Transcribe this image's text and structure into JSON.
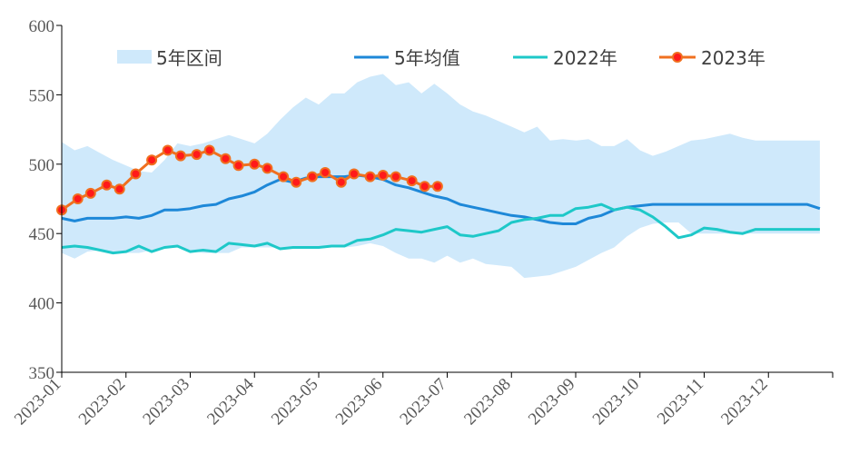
{
  "chart_data": {
    "type": "line",
    "title": "",
    "xlabel": "",
    "ylabel": "",
    "ylim": [
      350,
      600
    ],
    "yticks": [
      350,
      400,
      450,
      500,
      550,
      600
    ],
    "x_months": [
      "2023-01",
      "2023-02",
      "2023-03",
      "2023-04",
      "2023-05",
      "2023-06",
      "2023-07",
      "2023-08",
      "2023-09",
      "2023-10",
      "2023-11",
      "2023-12"
    ],
    "grid": false,
    "legend_position": "top",
    "band": {
      "name": "5年区间",
      "color": "#cfe9fb",
      "x": [
        0,
        0.2,
        0.4,
        0.6,
        0.8,
        1,
        1.2,
        1.4,
        1.6,
        1.8,
        2,
        2.2,
        2.4,
        2.6,
        2.8,
        3,
        3.2,
        3.4,
        3.6,
        3.8,
        4,
        4.2,
        4.4,
        4.6,
        4.8,
        5,
        5.2,
        5.4,
        5.6,
        5.8,
        6,
        6.2,
        6.4,
        6.6,
        6.8,
        7,
        7.2,
        7.4,
        7.6,
        7.8,
        8,
        8.2,
        8.4,
        8.6,
        8.8,
        9,
        9.2,
        9.4,
        9.6,
        9.8,
        10,
        10.2,
        10.4,
        10.6,
        10.8,
        11,
        11.2,
        11.4,
        11.6,
        11.8
      ],
      "upper": [
        516,
        510,
        513,
        508,
        503,
        499,
        495,
        494,
        503,
        515,
        513,
        515,
        518,
        521,
        518,
        515,
        522,
        532,
        541,
        548,
        543,
        551,
        551,
        559,
        563,
        565,
        557,
        559,
        551,
        558,
        551,
        543,
        538,
        535,
        531,
        527,
        523,
        527,
        517,
        518,
        517,
        518,
        513,
        513,
        518,
        510,
        506,
        509,
        513,
        517,
        518,
        520,
        522,
        519,
        517,
        517,
        517,
        517,
        517,
        517
      ],
      "lower": [
        436,
        432,
        437,
        438,
        437,
        436,
        436,
        438,
        440,
        440,
        438,
        436,
        436,
        436,
        440,
        440,
        440,
        440,
        439,
        440,
        440,
        440,
        440,
        441,
        443,
        441,
        436,
        432,
        432,
        429,
        434,
        429,
        432,
        428,
        427,
        426,
        418,
        419,
        420,
        423,
        426,
        431,
        436,
        440,
        448,
        454,
        457,
        458,
        458,
        450,
        450,
        450,
        450,
        450,
        450,
        450,
        450,
        450,
        450,
        450
      ]
    },
    "series": [
      {
        "name": "5年均值",
        "color": "#1e88d8",
        "marker": false,
        "x": [
          0,
          0.2,
          0.4,
          0.6,
          0.8,
          1,
          1.2,
          1.4,
          1.6,
          1.8,
          2,
          2.2,
          2.4,
          2.6,
          2.8,
          3,
          3.2,
          3.4,
          3.6,
          3.8,
          4,
          4.2,
          4.4,
          4.6,
          4.8,
          5,
          5.2,
          5.4,
          5.6,
          5.8,
          6,
          6.2,
          6.4,
          6.6,
          6.8,
          7,
          7.2,
          7.4,
          7.6,
          7.8,
          8,
          8.2,
          8.4,
          8.6,
          8.8,
          9,
          9.2,
          9.4,
          9.6,
          9.8,
          10,
          10.2,
          10.4,
          10.6,
          10.8,
          11,
          11.2,
          11.4,
          11.6,
          11.8
        ],
        "values": [
          461,
          459,
          461,
          461,
          461,
          462,
          461,
          463,
          467,
          467,
          468,
          470,
          471,
          475,
          477,
          480,
          485,
          489,
          487,
          490,
          491,
          491,
          491,
          492,
          491,
          489,
          485,
          483,
          480,
          477,
          475,
          471,
          469,
          467,
          465,
          463,
          462,
          460,
          458,
          457,
          457,
          461,
          463,
          467,
          469,
          470,
          471,
          471,
          471,
          471,
          471,
          471,
          471,
          471,
          471,
          471,
          471,
          471,
          471,
          468
        ]
      },
      {
        "name": "2022年",
        "color": "#1ec8c8",
        "marker": false,
        "x": [
          0,
          0.2,
          0.4,
          0.6,
          0.8,
          1,
          1.2,
          1.4,
          1.6,
          1.8,
          2,
          2.2,
          2.4,
          2.6,
          2.8,
          3,
          3.2,
          3.4,
          3.6,
          3.8,
          4,
          4.2,
          4.4,
          4.6,
          4.8,
          5,
          5.2,
          5.4,
          5.6,
          5.8,
          6,
          6.2,
          6.4,
          6.6,
          6.8,
          7,
          7.2,
          7.4,
          7.6,
          7.8,
          8,
          8.2,
          8.4,
          8.6,
          8.8,
          9,
          9.2,
          9.4,
          9.6,
          9.8,
          10,
          10.2,
          10.4,
          10.6,
          10.8,
          11,
          11.2,
          11.4,
          11.6,
          11.8
        ],
        "values": [
          440,
          441,
          440,
          438,
          436,
          437,
          441,
          437,
          440,
          441,
          437,
          438,
          437,
          443,
          442,
          441,
          443,
          439,
          440,
          440,
          440,
          441,
          441,
          445,
          446,
          449,
          453,
          452,
          451,
          453,
          455,
          449,
          448,
          450,
          452,
          458,
          460,
          461,
          463,
          463,
          468,
          469,
          471,
          467,
          469,
          467,
          462,
          455,
          447,
          449,
          454,
          453,
          451,
          450,
          453,
          453,
          453,
          453,
          453,
          453
        ]
      },
      {
        "name": "2023年",
        "color": "#f07020",
        "marker": true,
        "marker_fill": "#ff1a1a",
        "x": [
          0,
          0.25,
          0.45,
          0.7,
          0.9,
          1.15,
          1.4,
          1.65,
          1.85,
          2.1,
          2.3,
          2.55,
          2.75,
          3,
          3.2,
          3.45,
          3.65,
          3.9,
          4.1,
          4.35,
          4.55,
          4.8,
          5,
          5.2,
          5.45,
          5.65,
          5.85
        ],
        "values": [
          467,
          475,
          479,
          485,
          482,
          493,
          503,
          510,
          506,
          507,
          510,
          504,
          499,
          500,
          497,
          491,
          487,
          491,
          494,
          487,
          493,
          491,
          492,
          491,
          488,
          484,
          484
        ]
      }
    ]
  }
}
